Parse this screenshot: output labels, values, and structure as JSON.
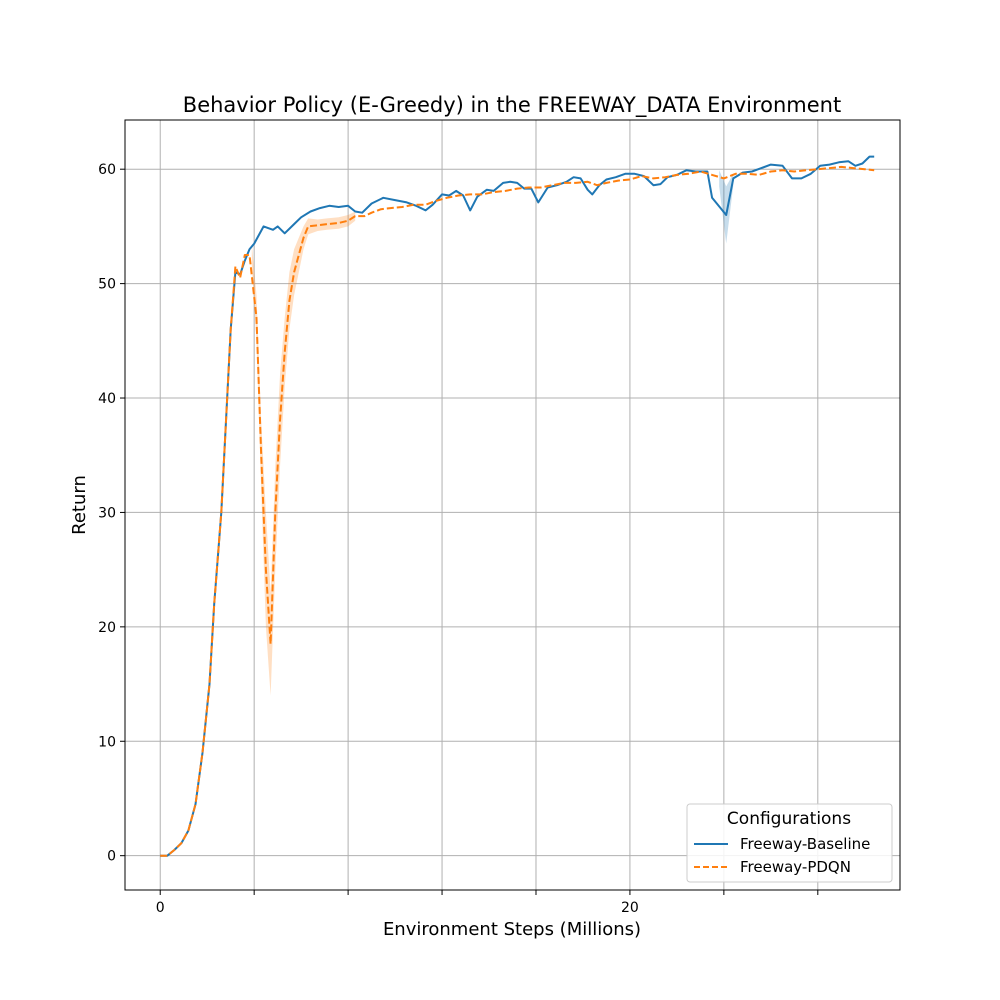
{
  "chart_data": {
    "type": "line",
    "title": "Behavior Policy (E-Greedy) in the FREEWAY_DATA Environment",
    "xlabel": "Environment Steps (Millions)",
    "ylabel": "Return",
    "xlim": [
      -1.5,
      31.5
    ],
    "ylim": [
      -3,
      64.3
    ],
    "x_ticks": [
      0,
      4,
      8,
      12,
      16,
      20,
      24,
      28
    ],
    "x_tick_labels": [
      "0",
      "",
      "",
      "",
      "",
      "20",
      "",
      ""
    ],
    "y_ticks": [
      0,
      10,
      20,
      30,
      40,
      50,
      60
    ],
    "y_tick_labels": [
      "0",
      "10",
      "20",
      "30",
      "40",
      "50",
      "60"
    ],
    "grid": true,
    "legend": {
      "title": "Configurations",
      "position": "lower-right",
      "entries": [
        "Freeway-Baseline",
        "Freeway-PDQN"
      ]
    },
    "series": [
      {
        "name": "Freeway-Baseline",
        "color": "#1f77b4",
        "dash": "solid",
        "band_color": "#1f77b4",
        "points": [
          [
            0,
            0
          ],
          [
            0.3,
            0
          ],
          [
            0.6,
            0.5
          ],
          [
            0.9,
            1.1
          ],
          [
            1.2,
            2.2
          ],
          [
            1.5,
            4.5
          ],
          [
            1.8,
            9
          ],
          [
            2.1,
            15
          ],
          [
            2.3,
            22
          ],
          [
            2.6,
            30
          ],
          [
            2.8,
            38
          ],
          [
            3.0,
            46
          ],
          [
            3.2,
            51
          ],
          [
            3.4,
            50.8
          ],
          [
            3.6,
            52
          ],
          [
            3.8,
            53
          ],
          [
            4.0,
            53.5
          ],
          [
            4.4,
            55
          ],
          [
            4.8,
            54.7
          ],
          [
            5.0,
            55
          ],
          [
            5.3,
            54.4
          ],
          [
            5.7,
            55.2
          ],
          [
            6.0,
            55.8
          ],
          [
            6.4,
            56.3
          ],
          [
            6.8,
            56.6
          ],
          [
            7.2,
            56.8
          ],
          [
            7.6,
            56.7
          ],
          [
            8.0,
            56.8
          ],
          [
            8.3,
            56.3
          ],
          [
            8.6,
            56.2
          ],
          [
            9.0,
            57
          ],
          [
            9.5,
            57.5
          ],
          [
            10.0,
            57.3
          ],
          [
            10.5,
            57.1
          ],
          [
            10.9,
            56.8
          ],
          [
            11.3,
            56.4
          ],
          [
            11.6,
            56.9
          ],
          [
            12.0,
            57.8
          ],
          [
            12.3,
            57.7
          ],
          [
            12.6,
            58.1
          ],
          [
            12.9,
            57.7
          ],
          [
            13.2,
            56.4
          ],
          [
            13.5,
            57.6
          ],
          [
            13.9,
            58.2
          ],
          [
            14.2,
            58.1
          ],
          [
            14.6,
            58.8
          ],
          [
            14.9,
            58.9
          ],
          [
            15.2,
            58.8
          ],
          [
            15.5,
            58.3
          ],
          [
            15.8,
            58.3
          ],
          [
            16.1,
            57.1
          ],
          [
            16.5,
            58.4
          ],
          [
            16.9,
            58.6
          ],
          [
            17.3,
            58.9
          ],
          [
            17.6,
            59.3
          ],
          [
            17.9,
            59.2
          ],
          [
            18.2,
            58.2
          ],
          [
            18.4,
            57.8
          ],
          [
            18.7,
            58.6
          ],
          [
            19.0,
            59.1
          ],
          [
            19.4,
            59.3
          ],
          [
            19.8,
            59.6
          ],
          [
            20.2,
            59.6
          ],
          [
            20.6,
            59.4
          ],
          [
            21.0,
            58.6
          ],
          [
            21.3,
            58.7
          ],
          [
            21.6,
            59.3
          ],
          [
            22.0,
            59.5
          ],
          [
            22.4,
            59.9
          ],
          [
            22.8,
            59.8
          ],
          [
            23.3,
            59.8
          ],
          [
            23.5,
            57.5
          ],
          [
            24.1,
            56
          ],
          [
            24.4,
            59.2
          ],
          [
            24.8,
            59.7
          ],
          [
            25.2,
            59.8
          ],
          [
            25.6,
            60.1
          ],
          [
            26.0,
            60.4
          ],
          [
            26.5,
            60.3
          ],
          [
            26.9,
            59.2
          ],
          [
            27.3,
            59.2
          ],
          [
            27.7,
            59.6
          ],
          [
            28.1,
            60.3
          ],
          [
            28.5,
            60.4
          ],
          [
            28.9,
            60.6
          ],
          [
            29.3,
            60.7
          ],
          [
            29.6,
            60.3
          ],
          [
            29.9,
            60.5
          ],
          [
            30.2,
            61.1
          ],
          [
            30.4,
            61.1
          ]
        ],
        "band": [
          [
            23.8,
            58.5,
            59.9
          ],
          [
            24.1,
            53.5,
            58.5
          ],
          [
            24.4,
            58.6,
            59.6
          ]
        ]
      },
      {
        "name": "Freeway-PDQN",
        "color": "#ff7f0e",
        "dash": "dashed",
        "band_color": "#ff7f0e",
        "points": [
          [
            0,
            0
          ],
          [
            0.3,
            0
          ],
          [
            0.6,
            0.5
          ],
          [
            0.9,
            1.1
          ],
          [
            1.2,
            2.2
          ],
          [
            1.5,
            4.5
          ],
          [
            1.8,
            9
          ],
          [
            2.1,
            15
          ],
          [
            2.3,
            22
          ],
          [
            2.6,
            30
          ],
          [
            2.8,
            38
          ],
          [
            3.0,
            46
          ],
          [
            3.2,
            51.5
          ],
          [
            3.4,
            50.5
          ],
          [
            3.6,
            52.5
          ],
          [
            3.8,
            52.5
          ],
          [
            4.1,
            47
          ],
          [
            4.3,
            35
          ],
          [
            4.5,
            25
          ],
          [
            4.7,
            18.5
          ],
          [
            4.9,
            30
          ],
          [
            5.1,
            38
          ],
          [
            5.3,
            44
          ],
          [
            5.5,
            48.5
          ],
          [
            5.7,
            51
          ],
          [
            5.9,
            52.5
          ],
          [
            6.1,
            54
          ],
          [
            6.3,
            55
          ],
          [
            6.7,
            55.1
          ],
          [
            7.1,
            55.2
          ],
          [
            7.6,
            55.3
          ],
          [
            8.0,
            55.5
          ],
          [
            8.3,
            55.9
          ],
          [
            8.7,
            55.9
          ],
          [
            9.0,
            56.2
          ],
          [
            9.4,
            56.5
          ],
          [
            9.8,
            56.6
          ],
          [
            10.3,
            56.7
          ],
          [
            10.8,
            56.9
          ],
          [
            11.3,
            56.9
          ],
          [
            11.7,
            57.2
          ],
          [
            12.2,
            57.5
          ],
          [
            12.7,
            57.7
          ],
          [
            13.2,
            57.8
          ],
          [
            13.7,
            57.8
          ],
          [
            14.2,
            58.0
          ],
          [
            14.7,
            58.1
          ],
          [
            15.2,
            58.3
          ],
          [
            15.7,
            58.4
          ],
          [
            16.2,
            58.4
          ],
          [
            16.7,
            58.6
          ],
          [
            17.2,
            58.8
          ],
          [
            17.7,
            58.8
          ],
          [
            18.2,
            58.9
          ],
          [
            18.6,
            58.6
          ],
          [
            19.0,
            58.8
          ],
          [
            19.5,
            59.0
          ],
          [
            20.0,
            59.1
          ],
          [
            20.5,
            59.4
          ],
          [
            21.0,
            59.2
          ],
          [
            21.5,
            59.3
          ],
          [
            22.0,
            59.5
          ],
          [
            22.5,
            59.6
          ],
          [
            23.0,
            59.8
          ],
          [
            23.5,
            59.5
          ],
          [
            24.0,
            59.2
          ],
          [
            24.5,
            59.6
          ],
          [
            25.0,
            59.6
          ],
          [
            25.5,
            59.5
          ],
          [
            26.0,
            59.8
          ],
          [
            26.5,
            59.9
          ],
          [
            27.0,
            59.8
          ],
          [
            27.5,
            59.9
          ],
          [
            28.0,
            60.0
          ],
          [
            28.5,
            60.1
          ],
          [
            29.0,
            60.2
          ],
          [
            29.5,
            60.1
          ],
          [
            30.0,
            60.0
          ],
          [
            30.4,
            59.9
          ]
        ],
        "band": [
          [
            3.9,
            51.5,
            53.5
          ],
          [
            4.1,
            45,
            49
          ],
          [
            4.3,
            32,
            38
          ],
          [
            4.5,
            20,
            30
          ],
          [
            4.7,
            14,
            23
          ],
          [
            4.9,
            25,
            34
          ],
          [
            5.1,
            34,
            42
          ],
          [
            5.3,
            41,
            47
          ],
          [
            5.5,
            46,
            51
          ],
          [
            5.7,
            49,
            53
          ],
          [
            5.9,
            51,
            54
          ],
          [
            6.1,
            53,
            55
          ],
          [
            6.3,
            54.3,
            55.7
          ],
          [
            6.7,
            54.6,
            55.6
          ],
          [
            7.1,
            54.7,
            55.7
          ],
          [
            7.6,
            54.8,
            55.8
          ],
          [
            8.0,
            55.0,
            56.0
          ],
          [
            8.3,
            55.5,
            56.3
          ]
        ]
      }
    ]
  }
}
